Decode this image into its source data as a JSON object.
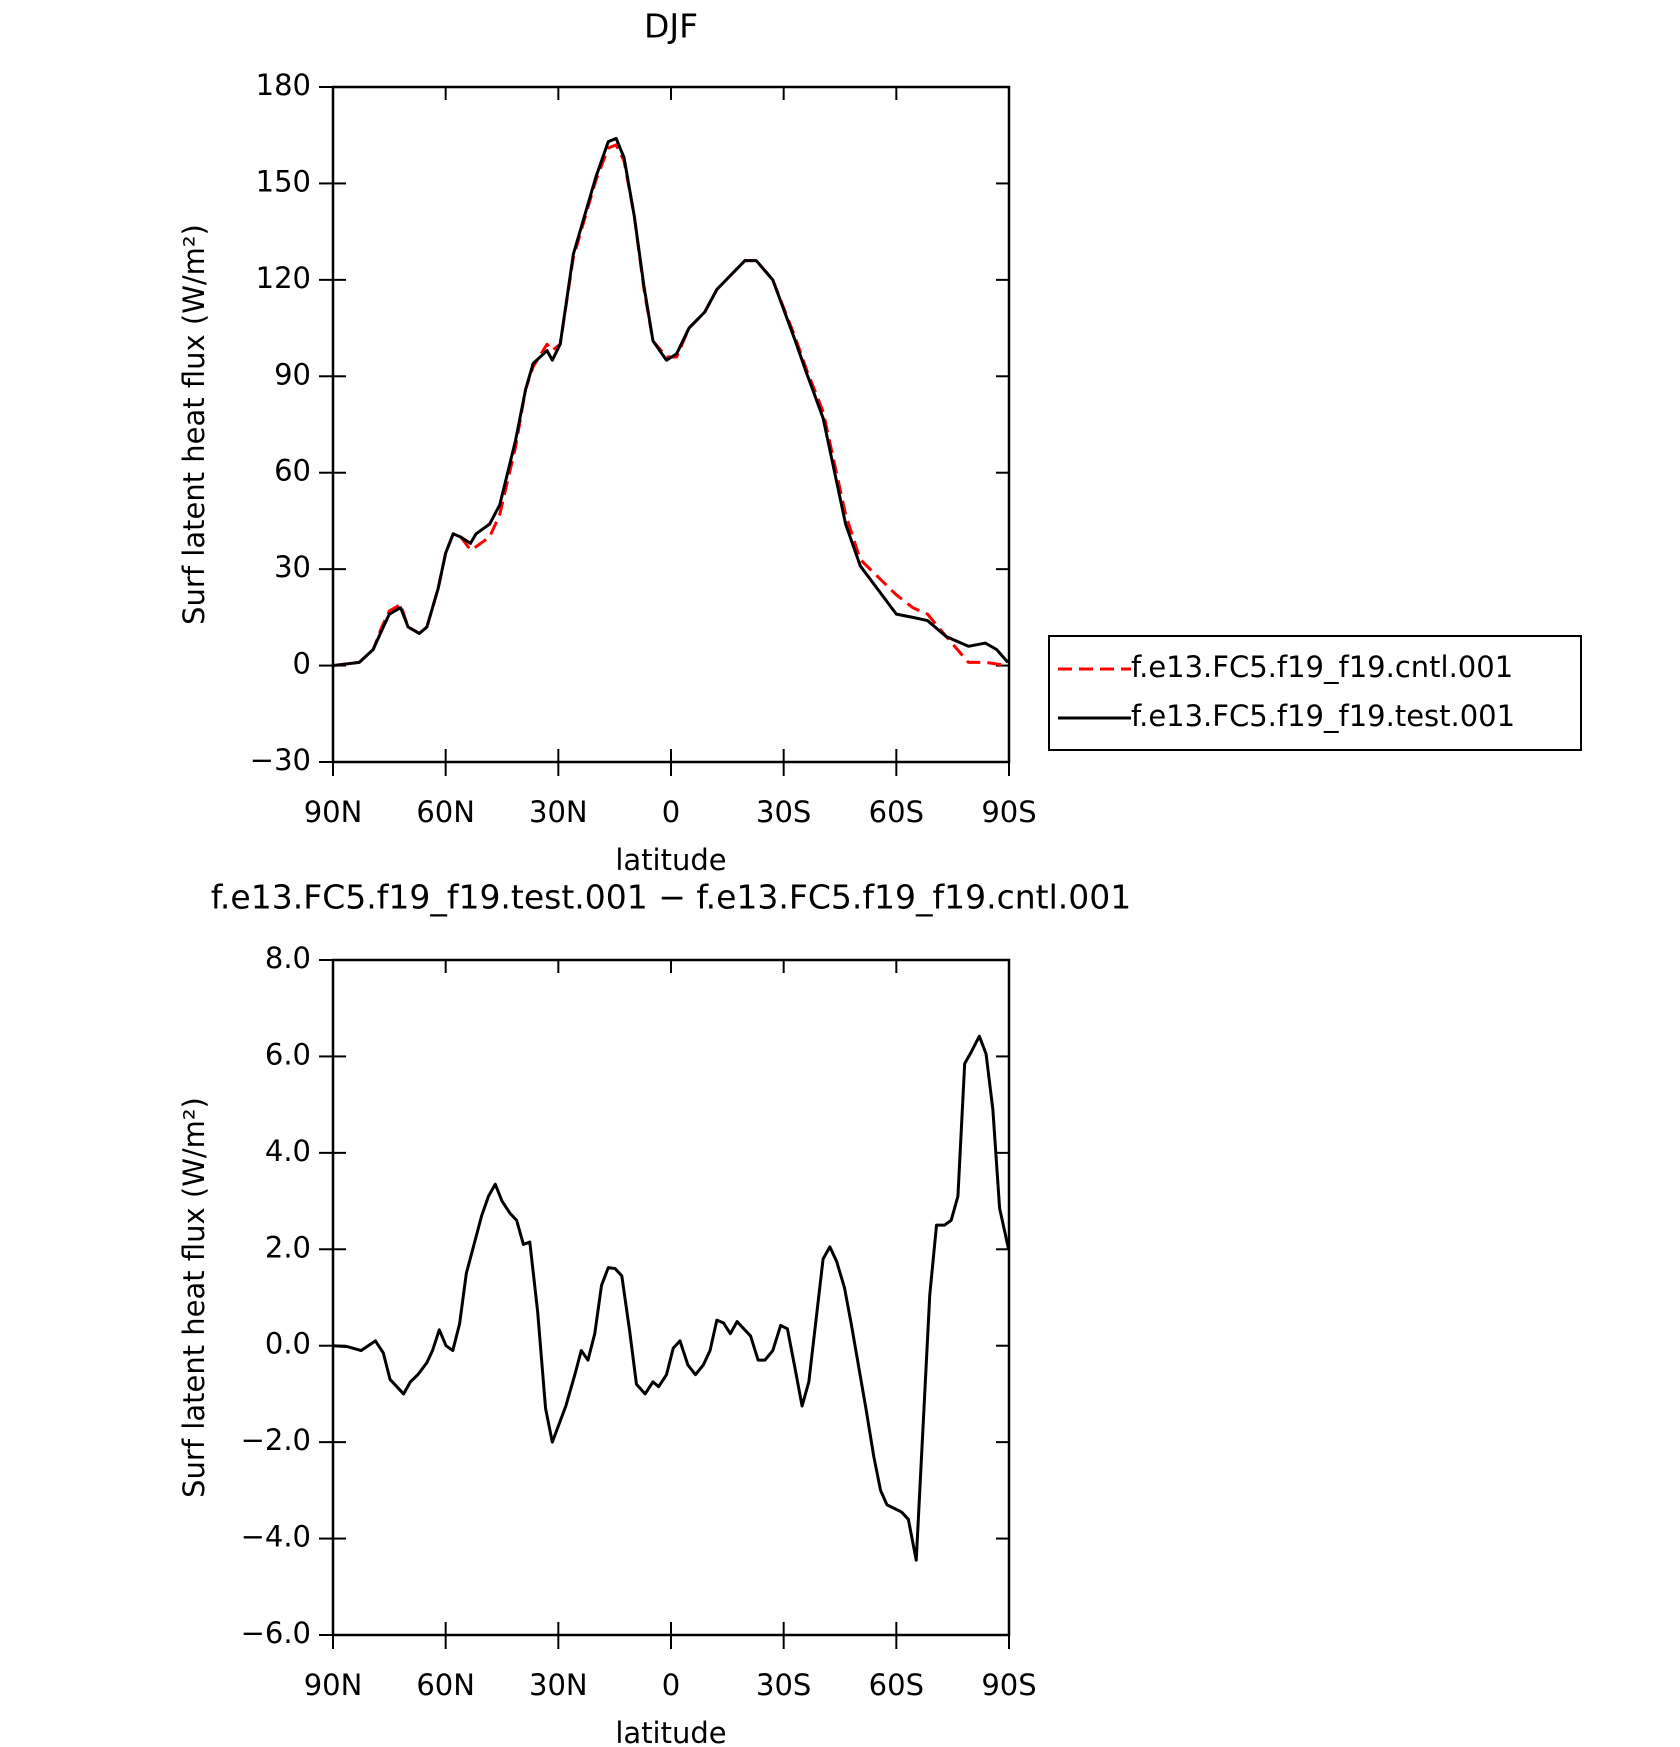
{
  "chart_data": [
    {
      "type": "line",
      "title": "DJF",
      "x_label": "latitude",
      "y_label": "Surf latent heat flux (W/m²)",
      "x": [
        90,
        83,
        79.3,
        77,
        75,
        72,
        70,
        67,
        65,
        62,
        60,
        58,
        56,
        53.4,
        51.9,
        48.3,
        45.6,
        41.4,
        38.7,
        36.7,
        33,
        31.6,
        29.5,
        26,
        20,
        16.7,
        14.6,
        12.5,
        9.8,
        7.2,
        4.8,
        1.2,
        -1.5,
        -4.8,
        -9,
        -12.2,
        -19.7,
        -22.7,
        -27.1,
        -33.1,
        -36.1,
        -40.5,
        -46.5,
        -50.4,
        -60,
        -64.4,
        -68.3,
        -73.3,
        -79.2,
        -83.7,
        -86.7,
        -89.7
      ],
      "series": [
        {
          "name": "f.e13.FC5.f19_f19.cntl.001",
          "color": "#ff0000",
          "line_style": "dashed",
          "values": [
            0,
            1,
            5,
            12,
            17,
            19,
            12,
            10,
            12,
            24,
            35,
            41,
            40,
            36,
            37,
            40,
            47,
            68,
            86,
            93,
            100,
            98,
            100,
            127,
            151,
            161,
            162,
            157,
            140,
            117,
            101,
            96,
            96,
            105,
            110,
            117,
            126,
            126,
            120,
            102,
            92,
            79,
            47,
            33,
            22,
            18,
            16,
            9,
            1,
            1,
            0.5,
            0
          ]
        },
        {
          "name": "f.e13.FC5.f19_f19.test.001",
          "color": "#000000",
          "line_style": "solid",
          "values": [
            0,
            1,
            5,
            11,
            16,
            18,
            12,
            10,
            12,
            24,
            35,
            41,
            40,
            38,
            41,
            44,
            50,
            70,
            86,
            94,
            98,
            95,
            100,
            128,
            152,
            163,
            164,
            158,
            140,
            118,
            101,
            95,
            97,
            105,
            110,
            117,
            126,
            126,
            120,
            101,
            91,
            77,
            44,
            31,
            16,
            15,
            14,
            9,
            6,
            7,
            5,
            1
          ]
        }
      ],
      "xlim": [
        90,
        -90
      ],
      "xticks": [
        {
          "value": 90,
          "label": "90N"
        },
        {
          "value": 60,
          "label": "60N"
        },
        {
          "value": 30,
          "label": "30N"
        },
        0,
        {
          "value": -30,
          "label": "30S"
        },
        {
          "value": -60,
          "label": "60S"
        },
        {
          "value": -90,
          "label": "90S"
        }
      ],
      "ylim": [
        -30,
        180
      ],
      "yticks": [
        {
          "value": -30,
          "label": "−30"
        },
        0,
        30,
        60,
        90,
        120,
        150,
        180
      ],
      "legend": "right"
    },
    {
      "type": "line",
      "title": "f.e13.FC5.f19_f19.test.001 − f.e13.FC5.f19_f19.cntl.001",
      "x_label": "latitude",
      "y_label": "Surf latent heat flux (W/m²)",
      "x": [
        90,
        86.1,
        82.5,
        78.7,
        76.6,
        74.8,
        71.2,
        69.4,
        67.4,
        65,
        63.5,
        61.7,
        59.9,
        58.1,
        56.3,
        54.5,
        50.4,
        48.6,
        46.8,
        45,
        42.9,
        41.1,
        39.3,
        37.6,
        35.5,
        33.4,
        31.6,
        28,
        25.6,
        23.9,
        22.1,
        20.3,
        18.5,
        16.7,
        14.9,
        13.1,
        11,
        9.2,
        6.9,
        4.8,
        3.3,
        1.2,
        -0.6,
        -2.4,
        -4.5,
        -6.5,
        -8.6,
        -10.4,
        -12.2,
        -14,
        -15.8,
        -17.6,
        -21.2,
        -23.2,
        -25,
        -27.1,
        -29.2,
        -31,
        -33.1,
        -34.9,
        -36.7,
        -40.5,
        -42.3,
        -44.1,
        -46.2,
        -48,
        -51.9,
        -54,
        -55.8,
        -57.5,
        -61.4,
        -63.2,
        -65.3,
        -68.9,
        -70.7,
        -72.8,
        -74.6,
        -76.4,
        -78.2,
        -80,
        -82.1,
        -83.9,
        -85.7,
        -87.5,
        -89.9
      ],
      "color": "#000000",
      "values": [
        0,
        -0.02,
        -0.1,
        0.1,
        -0.15,
        -0.7,
        -1.0,
        -0.75,
        -0.6,
        -0.35,
        -0.1,
        0.33,
        0,
        -0.1,
        0.45,
        1.5,
        2.7,
        3.1,
        3.35,
        3.0,
        2.75,
        2.6,
        2.1,
        2.15,
        0.7,
        -1.3,
        -2.0,
        -1.25,
        -0.6,
        -0.1,
        -0.3,
        0.25,
        1.25,
        1.62,
        1.6,
        1.45,
        0.3,
        -0.8,
        -1.0,
        -0.75,
        -0.85,
        -0.6,
        -0.05,
        0.1,
        -0.4,
        -0.6,
        -0.4,
        -0.1,
        0.53,
        0.47,
        0.25,
        0.5,
        0.2,
        -0.3,
        -0.3,
        -0.1,
        0.42,
        0.35,
        -0.5,
        -1.25,
        -0.75,
        1.8,
        2.05,
        1.75,
        1.2,
        0.45,
        -1.3,
        -2.3,
        -3.0,
        -3.3,
        -3.45,
        -3.6,
        -4.45,
        1.05,
        2.5,
        2.5,
        2.6,
        3.1,
        5.85,
        6.1,
        6.42,
        6.05,
        4.9,
        2.85,
        2.0
      ],
      "xlim": [
        90,
        -90
      ],
      "xticks": [
        {
          "value": 90,
          "label": "90N"
        },
        {
          "value": 60,
          "label": "60N"
        },
        {
          "value": 30,
          "label": "30N"
        },
        0,
        {
          "value": -30,
          "label": "30S"
        },
        {
          "value": -60,
          "label": "60S"
        },
        {
          "value": -90,
          "label": "90S"
        }
      ],
      "ylim": [
        -6,
        8
      ],
      "yticks": [
        {
          "value": -6,
          "label": "−6.0"
        },
        {
          "value": -4,
          "label": "−4.0"
        },
        {
          "value": -2,
          "label": "−2.0"
        },
        {
          "value": 0,
          "label": "0.0"
        },
        {
          "value": 2,
          "label": "2.0"
        },
        {
          "value": 4,
          "label": "4.0"
        },
        {
          "value": 6,
          "label": "6.0"
        },
        {
          "value": 8,
          "label": "8.0"
        }
      ]
    }
  ]
}
